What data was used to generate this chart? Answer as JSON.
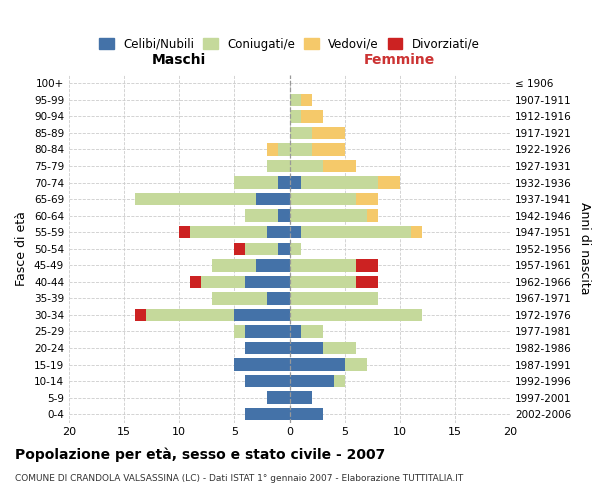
{
  "age_groups": [
    "0-4",
    "5-9",
    "10-14",
    "15-19",
    "20-24",
    "25-29",
    "30-34",
    "35-39",
    "40-44",
    "45-49",
    "50-54",
    "55-59",
    "60-64",
    "65-69",
    "70-74",
    "75-79",
    "80-84",
    "85-89",
    "90-94",
    "95-99",
    "100+"
  ],
  "birth_years": [
    "2002-2006",
    "1997-2001",
    "1992-1996",
    "1987-1991",
    "1982-1986",
    "1977-1981",
    "1972-1976",
    "1967-1971",
    "1962-1966",
    "1957-1961",
    "1952-1956",
    "1947-1951",
    "1942-1946",
    "1937-1941",
    "1932-1936",
    "1927-1931",
    "1922-1926",
    "1917-1921",
    "1912-1916",
    "1907-1911",
    "≤ 1906"
  ],
  "males_celibi": [
    4,
    2,
    4,
    5,
    4,
    4,
    5,
    2,
    4,
    3,
    1,
    2,
    1,
    3,
    1,
    0,
    0,
    0,
    0,
    0,
    0
  ],
  "males_coniugati": [
    0,
    0,
    0,
    0,
    0,
    1,
    8,
    5,
    4,
    4,
    3,
    7,
    3,
    11,
    4,
    2,
    1,
    0,
    0,
    0,
    0
  ],
  "males_vedovi": [
    0,
    0,
    0,
    0,
    0,
    0,
    0,
    0,
    0,
    0,
    0,
    0,
    0,
    0,
    0,
    0,
    1,
    0,
    0,
    0,
    0
  ],
  "males_divorziati": [
    0,
    0,
    0,
    0,
    0,
    0,
    1,
    0,
    1,
    0,
    1,
    1,
    0,
    0,
    0,
    0,
    0,
    0,
    0,
    0,
    0
  ],
  "females_nubili": [
    3,
    2,
    4,
    5,
    3,
    1,
    0,
    0,
    0,
    0,
    0,
    1,
    0,
    0,
    1,
    0,
    0,
    0,
    0,
    0,
    0
  ],
  "females_coniugate": [
    0,
    0,
    1,
    2,
    3,
    2,
    12,
    8,
    6,
    6,
    1,
    10,
    7,
    6,
    7,
    3,
    2,
    2,
    1,
    1,
    0
  ],
  "females_vedove": [
    0,
    0,
    0,
    0,
    0,
    0,
    0,
    0,
    0,
    0,
    0,
    1,
    1,
    2,
    2,
    3,
    3,
    3,
    2,
    1,
    0
  ],
  "females_divorziate": [
    0,
    0,
    0,
    0,
    0,
    0,
    0,
    0,
    2,
    2,
    0,
    0,
    0,
    0,
    0,
    0,
    0,
    0,
    0,
    0,
    0
  ],
  "color_celibi": "#4472a8",
  "color_coniugati": "#c5d99b",
  "color_vedovi": "#f5c96a",
  "color_divorziati": "#cc2222",
  "title_main": "Popolazione per età, sesso e stato civile - 2007",
  "title_sub": "COMUNE DI CRANDOLA VALSASSINA (LC) - Dati ISTAT 1° gennaio 2007 - Elaborazione TUTTITALIA.IT",
  "label_maschi": "Maschi",
  "label_femmine": "Femmine",
  "ylabel_left": "Fasce di età",
  "ylabel_right": "Anni di nascita",
  "legend_labels": [
    "Celibi/Nubili",
    "Coniugati/e",
    "Vedovi/e",
    "Divorziati/e"
  ],
  "xlim": 20,
  "bg_color": "#ffffff",
  "grid_color": "#cccccc",
  "femmine_label_color": "#cc3333"
}
